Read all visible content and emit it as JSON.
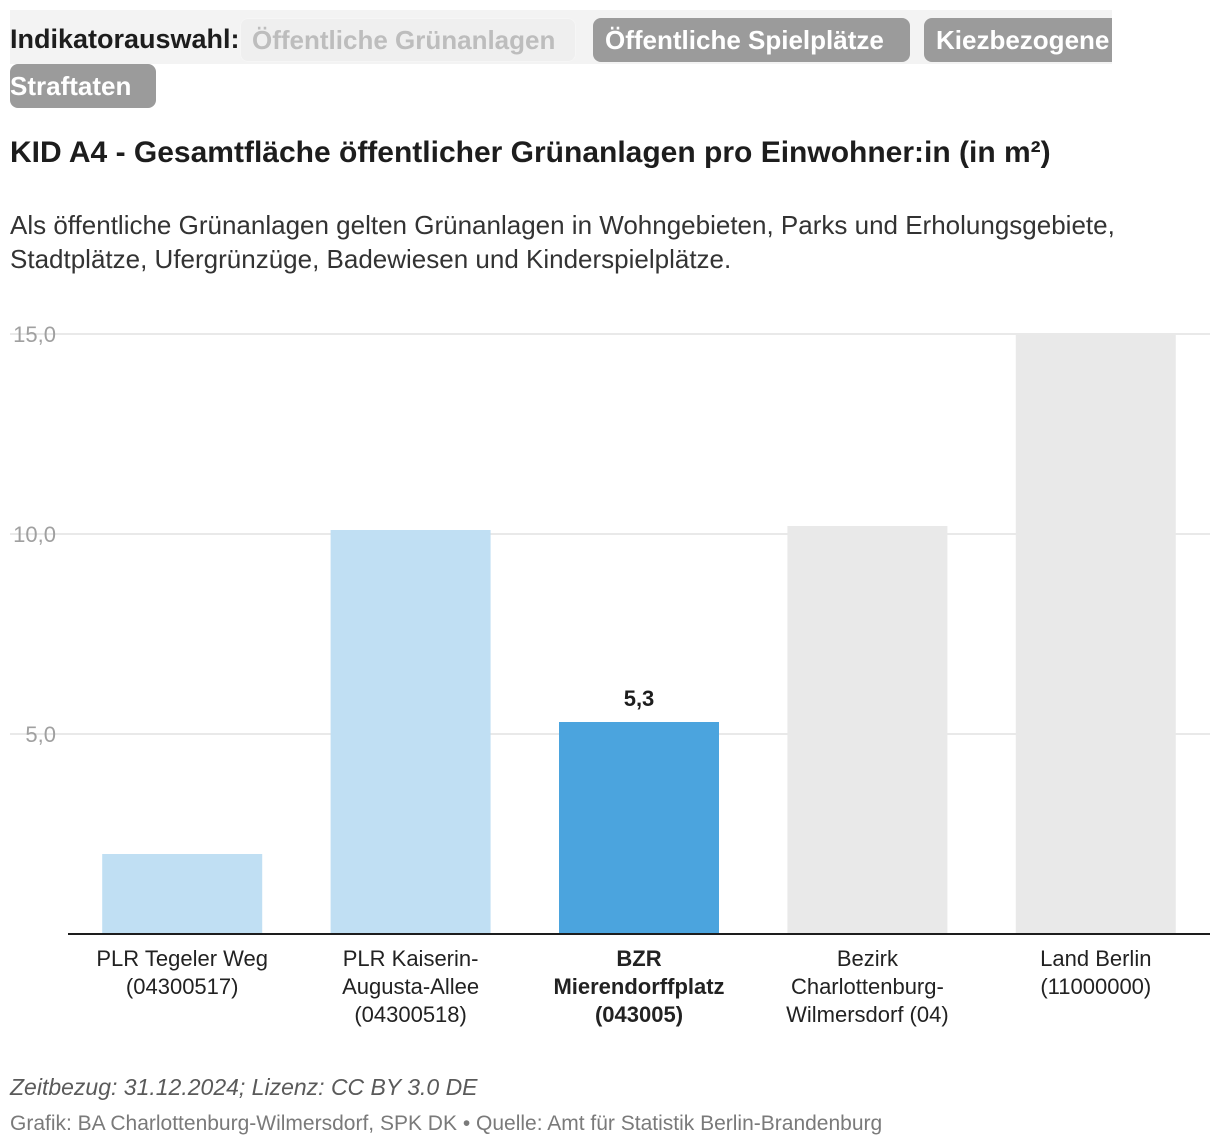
{
  "selector": {
    "label": "Indikatorauswahl:",
    "options": [
      {
        "label": "Öffentliche Grünanlagen",
        "active": true
      },
      {
        "label": "Öffentliche Spielplätze",
        "active": false
      },
      {
        "label": "Kiezbezogene",
        "active": false
      },
      {
        "label": "Straftaten",
        "active": false
      }
    ]
  },
  "header": {
    "title": "KID A4 - Gesamtfläche öffentlicher Grünanlagen pro Einwohner:in (in m²)",
    "description": "Als öffentliche Grünanlagen gelten Grünanlagen in Wohngebieten, Parks und Erholungsgebiete, Stadtplätze, Ufergrünzüge, Badewiesen und Kinderspielplätze."
  },
  "colors": {
    "light_blue": "#c0dff3",
    "blue": "#4ba4de",
    "gray": "#e9e9e9",
    "grid": "#e2e2e2",
    "axis": "#1d1d1d",
    "tick_text": "#a0a0a0"
  },
  "chart_data": {
    "type": "bar",
    "title": "KID A4 - Gesamtfläche öffentlicher Grünanlagen pro Einwohner:in (in m²)",
    "xlabel": "",
    "ylabel": "",
    "ylim": [
      0,
      15
    ],
    "grid": true,
    "yticks": [
      5,
      10,
      15
    ],
    "ytick_labels": [
      "5,0",
      "10,0",
      "15,0"
    ],
    "categories": [
      {
        "lines": [
          "PLR Tegeler Weg",
          "(04300517)"
        ],
        "bold": false
      },
      {
        "lines": [
          "PLR Kaiserin-",
          "Augusta-Allee",
          "(04300518)"
        ],
        "bold": false
      },
      {
        "lines": [
          "BZR",
          "Mierendorffplatz",
          "(043005)"
        ],
        "bold": true
      },
      {
        "lines": [
          "Bezirk",
          "Charlottenburg-",
          "Wilmersdorf (04)"
        ],
        "bold": false
      },
      {
        "lines": [
          "Land Berlin",
          "(11000000)"
        ],
        "bold": false
      }
    ],
    "values": [
      2.0,
      10.1,
      5.3,
      10.2,
      15.0
    ],
    "bar_colors": [
      "light_blue",
      "light_blue",
      "blue",
      "gray",
      "gray"
    ],
    "data_labels": [
      "",
      "",
      "5,3",
      "",
      ""
    ]
  },
  "footer": {
    "note": "Zeitbezug: 31.12.2024; Lizenz: CC BY 3.0 DE",
    "source": "Grafik: BA Charlottenburg-Wilmersdorf, SPK DK • Quelle: Amt für Statistik Berlin-Brandenburg"
  }
}
